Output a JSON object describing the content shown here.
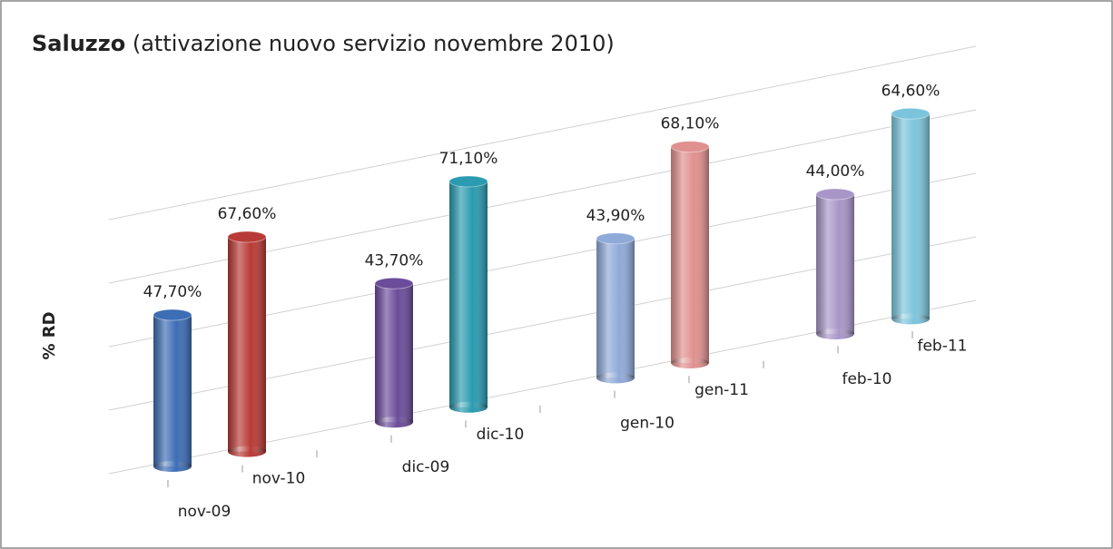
{
  "chart_data": {
    "type": "bar",
    "title": "Saluzzo",
    "subtitle": "(attivazione nuovo servizio novembre 2010)",
    "y_label": "% RD",
    "categories": [
      "nov-09",
      "nov-10",
      "dic-09",
      "dic-10",
      "gen-10",
      "gen-11",
      "feb-10",
      "feb-11"
    ],
    "values": [
      47.7,
      67.6,
      43.7,
      71.1,
      43.9,
      68.1,
      44.0,
      64.6
    ],
    "value_labels": [
      "47,70%",
      "67,60%",
      "43,70%",
      "71,10%",
      "43,90%",
      "68,10%",
      "44,00%",
      "64,60%"
    ],
    "colors": [
      "#3d6db5",
      "#b83a36",
      "#6b4c9a",
      "#2a9bb0",
      "#8fa9d8",
      "#e0908e",
      "#a896c8",
      "#7cc4dc"
    ],
    "ylim": [
      0,
      80
    ],
    "yticks": [
      0,
      20,
      40,
      60,
      80
    ],
    "grid": true
  }
}
